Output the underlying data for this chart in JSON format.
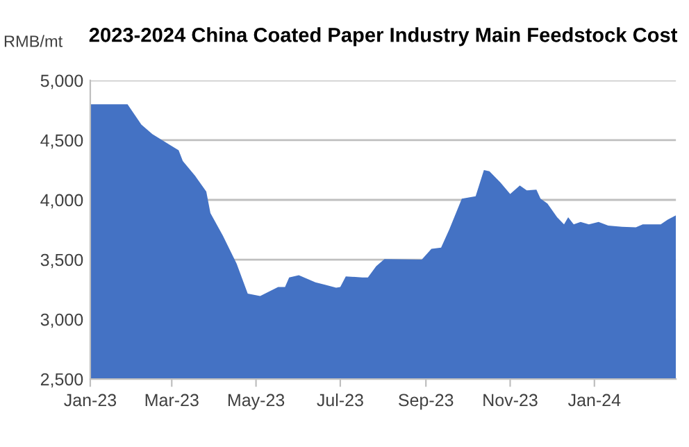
{
  "chart_data": {
    "type": "area",
    "title": "2023-2024 China Coated Paper Industry Main Feedstock Cost",
    "ylabel": "RMB/mt",
    "x": [
      "2023-01-01",
      "2023-01-28",
      "2023-02-07",
      "2023-02-15",
      "2023-02-27",
      "2023-03-06",
      "2023-03-09",
      "2023-03-18",
      "2023-03-26",
      "2023-03-29",
      "2023-04-07",
      "2023-04-17",
      "2023-04-25",
      "2023-05-04",
      "2023-05-10",
      "2023-05-17",
      "2023-05-22",
      "2023-05-25",
      "2023-06-01",
      "2023-06-13",
      "2023-06-20",
      "2023-06-28",
      "2023-07-01",
      "2023-07-05",
      "2023-07-17",
      "2023-07-21",
      "2023-07-27",
      "2023-08-02",
      "2023-08-29",
      "2023-09-05",
      "2023-09-12",
      "2023-09-18",
      "2023-09-27",
      "2023-10-07",
      "2023-10-13",
      "2023-10-17",
      "2023-10-25",
      "2023-11-01",
      "2023-11-08",
      "2023-11-13",
      "2023-11-20",
      "2023-11-23",
      "2023-11-28",
      "2023-12-05",
      "2023-12-10",
      "2023-12-13",
      "2023-12-17",
      "2023-12-22",
      "2023-12-28",
      "2024-01-04",
      "2024-01-11",
      "2024-01-21",
      "2024-01-31",
      "2024-02-05",
      "2024-02-18",
      "2024-02-23",
      "2024-02-29"
    ],
    "series": [
      {
        "color": "#4472c4",
        "values": [
          4800,
          4800,
          4630,
          4550,
          4465,
          4415,
          4325,
          4200,
          4070,
          3890,
          3700,
          3465,
          3215,
          3195,
          3230,
          3270,
          3270,
          3350,
          3370,
          3310,
          3290,
          3265,
          3270,
          3360,
          3350,
          3350,
          3445,
          3505,
          3500,
          3590,
          3600,
          3755,
          4010,
          4030,
          4250,
          4240,
          4145,
          4050,
          4120,
          4080,
          4085,
          4010,
          3970,
          3855,
          3795,
          3855,
          3795,
          3815,
          3795,
          3815,
          3785,
          3775,
          3770,
          3795,
          3795,
          3835,
          3870
        ]
      }
    ],
    "xlim": [
      "2023-01-01",
      "2024-02-29"
    ],
    "xticks": [
      {
        "value": "2023-01-01",
        "label": "Jan-23"
      },
      {
        "value": "2023-03-01",
        "label": "Mar-23"
      },
      {
        "value": "2023-05-01",
        "label": "May-23"
      },
      {
        "value": "2023-07-01",
        "label": "Jul-23"
      },
      {
        "value": "2023-09-01",
        "label": "Sep-23"
      },
      {
        "value": "2023-11-01",
        "label": "Nov-23"
      },
      {
        "value": "2024-01-01",
        "label": "Jan-24"
      }
    ],
    "ylim": [
      2500,
      5000
    ],
    "yticks": [
      {
        "value": 2500,
        "label": "2,500"
      },
      {
        "value": 3000,
        "label": "3,000"
      },
      {
        "value": 3500,
        "label": "3,500"
      },
      {
        "value": 4000,
        "label": "4,000"
      },
      {
        "value": 4500,
        "label": "4,500"
      },
      {
        "value": 5000,
        "label": "5,000"
      }
    ],
    "grid": "y",
    "legend": false
  }
}
